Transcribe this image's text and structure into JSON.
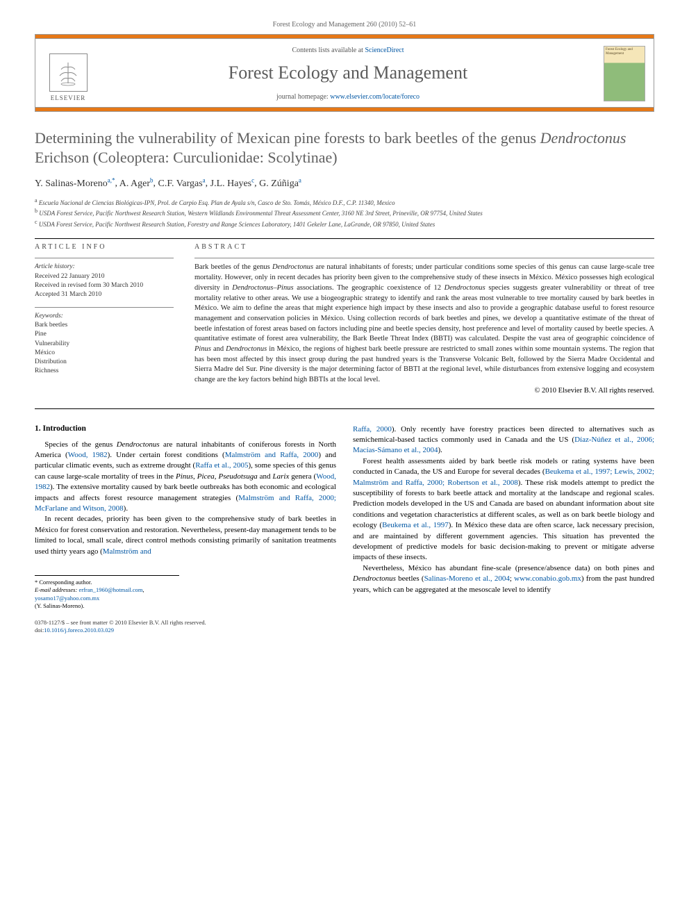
{
  "running_head": "Forest Ecology and Management 260 (2010) 52–61",
  "header": {
    "contents_prefix": "Contents lists available at ",
    "contents_link": "ScienceDirect",
    "journal_name": "Forest Ecology and Management",
    "homepage_prefix": "journal homepage: ",
    "homepage_link": "www.elsevier.com/locate/foreco",
    "publisher_name": "ELSEVIER",
    "cover_title": "Forest Ecology and Management"
  },
  "title_html": "Determining the vulnerability of Mexican pine forests to bark beetles of the genus <em>Dendroctonus</em> Erichson (Coleoptera: Curculionidae: Scolytinae)",
  "authors": [
    {
      "name": "Y. Salinas-Moreno",
      "affil": "a,",
      "corr": "*"
    },
    {
      "name": "A. Ager",
      "affil": "b"
    },
    {
      "name": "C.F. Vargas",
      "affil": "a"
    },
    {
      "name": "J.L. Hayes",
      "affil": "c"
    },
    {
      "name": "G. Zúñiga",
      "affil": "a"
    }
  ],
  "affiliations": [
    {
      "sup": "a",
      "text": "Escuela Nacional de Ciencias Biológicas-IPN, Prol. de Carpio Esq. Plan de Ayala s/n, Casco de Sto. Tomás, México D.F., C.P. 11340, Mexico"
    },
    {
      "sup": "b",
      "text": "USDA Forest Service, Pacific Northwest Research Station, Western Wildlands Environmental Threat Assessment Center, 3160 NE 3rd Street, Prineville, OR 97754, United States"
    },
    {
      "sup": "c",
      "text": "USDA Forest Service, Pacific Northwest Research Station, Forestry and Range Sciences Laboratory, 1401 Gekeler Lane, LaGrande, OR 97850, United States"
    }
  ],
  "article_info": {
    "heading": "ARTICLE INFO",
    "history_label": "Article history:",
    "history": [
      "Received 22 January 2010",
      "Received in revised form 30 March 2010",
      "Accepted 31 March 2010"
    ],
    "keywords_label": "Keywords:",
    "keywords": [
      "Bark beetles",
      "Pine",
      "Vulnerability",
      "México",
      "Distribution",
      "Richness"
    ]
  },
  "abstract": {
    "heading": "ABSTRACT",
    "text_html": "Bark beetles of the genus <em>Dendroctonus</em> are natural inhabitants of forests; under particular conditions some species of this genus can cause large-scale tree mortality. However, only in recent decades has priority been given to the comprehensive study of these insects in México. México possesses high ecological diversity in <em>Dendroctonus–Pinus</em> associations. The geographic coexistence of 12 <em>Dendroctonus</em> species suggests greater vulnerability or threat of tree mortality relative to other areas. We use a biogeographic strategy to identify and rank the areas most vulnerable to tree mortality caused by bark beetles in México. We aim to define the areas that might experience high impact by these insects and also to provide a geographic database useful to forest resource management and conservation policies in México. Using collection records of bark beetles and pines, we develop a quantitative estimate of the threat of beetle infestation of forest areas based on factors including pine and beetle species density, host preference and level of mortality caused by beetle species. A quantitative estimate of forest area vulnerability, the Bark Beetle Threat Index (BBTI) was calculated. Despite the vast area of geographic coincidence of <em>Pinus</em> and <em>Dendroctonus</em> in México, the regions of highest bark beetle pressure are restricted to small zones within some mountain systems. The region that has been most affected by this insect group during the past hundred years is the Transverse Volcanic Belt, followed by the Sierra Madre Occidental and Sierra Madre del Sur. Pine diversity is the major determining factor of BBTI at the regional level, while disturbances from extensive logging and ecosystem change are the key factors behind high BBTIs at the local level.",
    "copyright": "© 2010 Elsevier B.V. All rights reserved."
  },
  "section1_heading": "1.  Introduction",
  "body_col1": {
    "p1_html": "Species of the genus <em>Dendroctonus</em> are natural inhabitants of coniferous forests in North America (<a href='#'>Wood, 1982</a>). Under certain forest conditions (<a href='#'>Malmström and Raffa, 2000</a>) and particular climatic events, such as extreme drought (<a href='#'>Raffa et al., 2005</a>), some species of this genus can cause large-scale mortality of trees in the <em>Pinus, Picea, Pseudotsuga</em> and <em>Larix</em> genera (<a href='#'>Wood, 1982</a>). The extensive mortality caused by bark beetle outbreaks has both economic and ecological impacts and affects forest resource management strategies (<a href='#'>Malmström and Raffa, 2000; McFarlane and Witson, 2008</a>).",
    "p2_html": "In recent decades, priority has been given to the comprehensive study of bark beetles in México for forest conservation and restoration. Nevertheless, present-day management tends to be limited to local, small scale, direct control methods consisting primarily of sanitation treatments used thirty years ago (<a href='#'>Malmström and</a>"
  },
  "body_col2": {
    "p1_html": "<a href='#'>Raffa, 2000</a>). Only recently have forestry practices been directed to alternatives such as semichemical-based tactics commonly used in Canada and the US (<a href='#'>Díaz-Núñez et al., 2006; Macías-Sámano et al., 2004</a>).",
    "p2_html": "Forest health assessments aided by bark beetle risk models or rating systems have been conducted in Canada, the US and Europe for several decades (<a href='#'>Beukema et al., 1997; Lewis, 2002; Malmström and Raffa, 2000; Robertson et al., 2008</a>). These risk models attempt to predict the susceptibility of forests to bark beetle attack and mortality at the landscape and regional scales. Prediction models developed in the US and Canada are based on abundant information about site conditions and vegetation characteristics at different scales, as well as on bark beetle biology and ecology (<a href='#'>Beukema et al., 1997</a>). In México these data are often scarce, lack necessary precision, and are maintained by different government agencies. This situation has prevented the development of predictive models for basic decision-making to prevent or mitigate adverse impacts of these insects.",
    "p3_html": "Nevertheless, México has abundant fine-scale (presence/absence data) on both pines and <em>Dendroctonus</em> beetles (<a href='#'>Salinas-Moreno et al., 2004</a>; <a href='#'>www.conabio.gob.mx</a>) from the past hundred years, which can be aggregated at the mesoscale level to identify"
  },
  "footnotes": {
    "corr_label": "* Corresponding author.",
    "email_label": "E-mail addresses:",
    "email1": "erfran_1960@hotmail.com",
    "email_sep": ", ",
    "email2": "yosamo17@yahoo.com.mx",
    "corr_name": "(Y. Salinas-Moreno)."
  },
  "bottom_meta": {
    "line1": "0378-1127/$ – see front matter © 2010 Elsevier B.V. All rights reserved.",
    "doi_prefix": "doi:",
    "doi": "10.1016/j.foreco.2010.03.029"
  },
  "colors": {
    "accent_bar": "#e67817",
    "link": "#0056a3",
    "title_gray": "#606060"
  }
}
